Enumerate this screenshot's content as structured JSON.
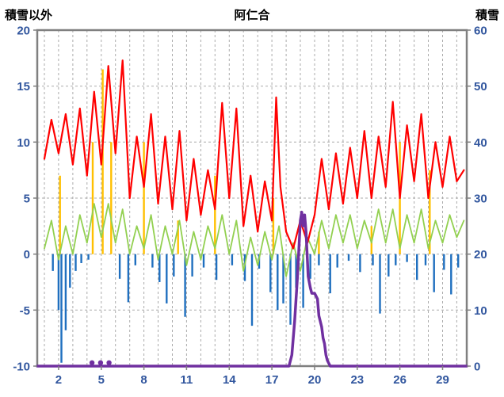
{
  "chart_data": {
    "type": "line",
    "title": "阿仁合",
    "left_axis_title": "積雪以外",
    "right_axis_title": "積雪",
    "x_range": [
      0.5,
      30.7
    ],
    "x_ticks": [
      2,
      5,
      8,
      11,
      14,
      17,
      20,
      23,
      26,
      29
    ],
    "left_axis": {
      "min": -10,
      "max": 20,
      "ticks": [
        20,
        15,
        10,
        5,
        0,
        -5,
        -10
      ]
    },
    "right_axis": {
      "min": 0,
      "max": 60,
      "ticks": [
        60,
        50,
        40,
        30,
        20,
        10,
        0
      ]
    },
    "colors": {
      "red": "#FF0000",
      "green": "#92D050",
      "blue": "#1F6FBF",
      "orange": "#FFC000",
      "purple": "#7030A0",
      "grid": "#ABABAB",
      "border": "#808080",
      "tick_label": "#31569E",
      "title": "#000000"
    },
    "series": [
      {
        "name": "orange-bars",
        "type": "bar",
        "axis": "left",
        "color_key": "orange",
        "stroke_width": 2.4,
        "points": [
          [
            2.1,
            7
          ],
          [
            4.4,
            10
          ],
          [
            5.1,
            16.5
          ],
          [
            5.7,
            10
          ],
          [
            8.0,
            10
          ],
          [
            10.4,
            3
          ],
          [
            13.0,
            7
          ],
          [
            17.1,
            5
          ],
          [
            20.3,
            2
          ],
          [
            24.0,
            2.5
          ],
          [
            26.0,
            10
          ],
          [
            28.1,
            7.5
          ]
        ]
      },
      {
        "name": "blue-bars",
        "type": "bar",
        "axis": "left",
        "color_key": "blue",
        "stroke_width": 2.4,
        "points": [
          [
            1.6,
            -1.5
          ],
          [
            2.0,
            -5
          ],
          [
            2.2,
            -9.7
          ],
          [
            2.5,
            -6.8
          ],
          [
            2.8,
            -3
          ],
          [
            3.2,
            -1.5
          ],
          [
            3.6,
            -0.8
          ],
          [
            4.1,
            -0.5
          ],
          [
            6.3,
            -2.2
          ],
          [
            6.9,
            -4.3
          ],
          [
            7.4,
            -1
          ],
          [
            8.6,
            -1.2
          ],
          [
            9.1,
            -2.5
          ],
          [
            9.6,
            -4.4
          ],
          [
            10.1,
            -2
          ],
          [
            10.9,
            -5.6
          ],
          [
            11.4,
            -2
          ],
          [
            12.2,
            -1.2
          ],
          [
            13.1,
            -2.3
          ],
          [
            14.2,
            -1
          ],
          [
            15.1,
            -2.4
          ],
          [
            15.6,
            -6.4
          ],
          [
            16.1,
            -1.3
          ],
          [
            16.9,
            -3.4
          ],
          [
            17.4,
            -5
          ],
          [
            17.8,
            -4.4
          ],
          [
            18.3,
            -6.3
          ],
          [
            18.7,
            -3
          ],
          [
            19.2,
            -4.8
          ],
          [
            19.7,
            -2.2
          ],
          [
            20.3,
            -1
          ],
          [
            21.1,
            -3.5
          ],
          [
            21.6,
            -1.2
          ],
          [
            22.4,
            -0.6
          ],
          [
            23.2,
            -1.6
          ],
          [
            24.1,
            -1
          ],
          [
            24.6,
            -5.3
          ],
          [
            25.2,
            -2
          ],
          [
            25.7,
            -1
          ],
          [
            26.5,
            -0.7
          ],
          [
            27.2,
            -2.3
          ],
          [
            27.8,
            -1
          ],
          [
            28.4,
            -3.4
          ],
          [
            29.1,
            -1.4
          ],
          [
            29.6,
            -3.6
          ],
          [
            30.1,
            -1.2
          ]
        ]
      },
      {
        "name": "green-line",
        "type": "line",
        "axis": "left",
        "color_key": "green",
        "stroke_width": 1.8,
        "x": [
          1,
          1.5,
          2,
          2.5,
          3,
          3.5,
          4,
          4.5,
          5,
          5.5,
          6,
          6.5,
          7,
          7.5,
          8,
          8.5,
          9,
          9.5,
          10,
          10.5,
          11,
          11.5,
          12,
          12.5,
          13,
          13.5,
          14,
          14.5,
          15,
          15.5,
          16,
          16.5,
          17,
          17.5,
          18,
          18.5,
          19,
          19.5,
          20,
          20.5,
          21,
          21.5,
          22,
          22.5,
          23,
          23.5,
          24,
          24.5,
          25,
          25.5,
          26,
          26.5,
          27,
          27.5,
          28,
          28.5,
          29,
          29.5,
          30,
          30.5
        ],
        "y": [
          0.5,
          3,
          -0.5,
          2.5,
          0,
          3.5,
          1,
          4.5,
          1.5,
          4.5,
          1,
          4,
          0,
          2.5,
          0.5,
          3.5,
          -0.5,
          2.5,
          0,
          3,
          -1,
          2,
          -0.5,
          2.5,
          0.5,
          3.5,
          0,
          3,
          -1.5,
          1.5,
          -1,
          2,
          -0.5,
          2.5,
          -2,
          1,
          -1.5,
          1.5,
          0,
          3,
          0.5,
          3.5,
          1,
          3.5,
          0.5,
          3,
          1,
          4,
          1,
          4,
          0.5,
          3.5,
          1,
          4,
          0.5,
          3,
          1,
          3.5,
          1.5,
          3
        ]
      },
      {
        "name": "red-line",
        "type": "line",
        "axis": "left",
        "color_key": "red",
        "stroke_width": 2.2,
        "x": [
          1,
          1.5,
          2,
          2.5,
          3,
          3.5,
          4,
          4.5,
          5,
          5.5,
          6,
          6.5,
          7,
          7.5,
          8,
          8.5,
          9,
          9.5,
          10,
          10.5,
          11,
          11.5,
          12,
          12.5,
          13,
          13.5,
          14,
          14.5,
          15,
          15.5,
          16,
          16.5,
          17,
          17.3,
          17.6,
          18,
          18.5,
          19,
          19.5,
          20,
          20.5,
          21,
          21.5,
          22,
          22.5,
          23,
          23.5,
          24,
          24.5,
          25,
          25.5,
          26,
          26.5,
          27,
          27.5,
          28,
          28.5,
          29,
          29.5,
          30,
          30.5
        ],
        "y": [
          8.5,
          12,
          9,
          12.5,
          8,
          13,
          7,
          14.5,
          8,
          16.8,
          9,
          17.3,
          5,
          10.5,
          6,
          12.5,
          4.5,
          10.5,
          4,
          11,
          3,
          8.5,
          3.5,
          7.5,
          4,
          13.5,
          5,
          13,
          2.5,
          7,
          2,
          6.5,
          3,
          14,
          6,
          2,
          0.5,
          3,
          1,
          3.5,
          8.5,
          4,
          9,
          4.5,
          9.5,
          5,
          11,
          5,
          10.5,
          6,
          13.6,
          5,
          11.5,
          6.5,
          12.5,
          5,
          10,
          6,
          10.5,
          6.5,
          7.5
        ]
      },
      {
        "name": "purple-snow-line",
        "type": "line",
        "axis": "right",
        "color_key": "purple",
        "stroke_width": 3.5,
        "x": [
          0.5,
          18.2,
          18.4,
          18.6,
          18.8,
          18.9,
          19.0,
          19.1,
          19.2,
          19.3,
          19.4,
          19.55,
          19.7,
          19.8,
          20.0,
          20.2,
          20.3,
          20.5,
          20.6,
          20.7,
          20.8,
          20.9,
          21.0,
          21.1,
          21.3,
          30.7
        ],
        "y": [
          0,
          0,
          2,
          8,
          16,
          21,
          26,
          27.5,
          25,
          27,
          24,
          16,
          14,
          13,
          13,
          12,
          9,
          7,
          5,
          4,
          2,
          1,
          0.5,
          0,
          0,
          0
        ]
      },
      {
        "name": "purple-snow-dots",
        "type": "dots",
        "axis": "right",
        "color_key": "purple",
        "points": [
          [
            4.35,
            0.6
          ],
          [
            4.95,
            0.6
          ],
          [
            5.55,
            0.6
          ]
        ]
      }
    ]
  }
}
